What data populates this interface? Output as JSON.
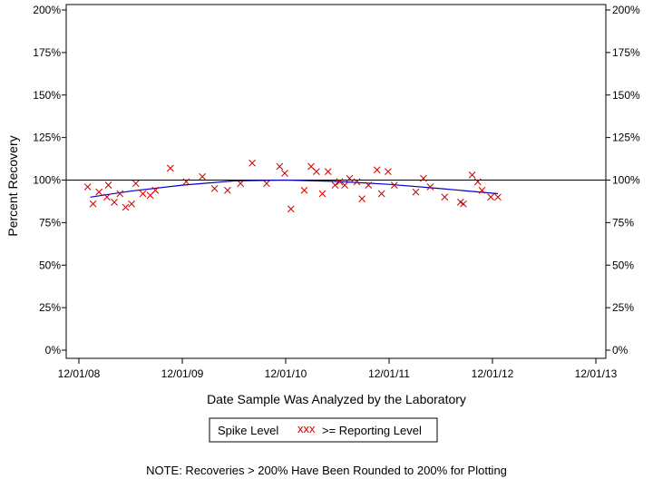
{
  "chart_data": {
    "type": "scatter",
    "xlabel": "Date Sample Was Analyzed by the Laboratory",
    "ylabel": "Percent Recovery",
    "x_ticks": [
      "12/01/08",
      "12/01/09",
      "12/01/10",
      "12/01/11",
      "12/01/12",
      "12/01/13"
    ],
    "y_ticks": [
      "0%",
      "25%",
      "50%",
      "75%",
      "100%",
      "125%",
      "150%",
      "175%",
      "200%"
    ],
    "xlim": [
      "2008-12-01",
      "2013-12-01"
    ],
    "ylim": [
      0,
      200
    ],
    "reference_line": 100,
    "series": [
      {
        "name": "Reporting Level",
        "marker": "x",
        "color": "#cc0000",
        "points": [
          {
            "x": "2009-01-01",
            "y": 96
          },
          {
            "x": "2009-01-20",
            "y": 86
          },
          {
            "x": "2009-02-10",
            "y": 93
          },
          {
            "x": "2009-03-10",
            "y": 90
          },
          {
            "x": "2009-03-15",
            "y": 97
          },
          {
            "x": "2009-04-05",
            "y": 87
          },
          {
            "x": "2009-04-25",
            "y": 92
          },
          {
            "x": "2009-05-15",
            "y": 84
          },
          {
            "x": "2009-06-05",
            "y": 86
          },
          {
            "x": "2009-06-20",
            "y": 98
          },
          {
            "x": "2009-07-15",
            "y": 92
          },
          {
            "x": "2009-08-10",
            "y": 91
          },
          {
            "x": "2009-08-28",
            "y": 94
          },
          {
            "x": "2009-10-20",
            "y": 107
          },
          {
            "x": "2009-12-15",
            "y": 99
          },
          {
            "x": "2010-02-10",
            "y": 102
          },
          {
            "x": "2010-03-25",
            "y": 95
          },
          {
            "x": "2010-05-10",
            "y": 94
          },
          {
            "x": "2010-06-25",
            "y": 98
          },
          {
            "x": "2010-08-05",
            "y": 110
          },
          {
            "x": "2010-09-25",
            "y": 98
          },
          {
            "x": "2010-11-10",
            "y": 108
          },
          {
            "x": "2010-11-28",
            "y": 104
          },
          {
            "x": "2010-12-20",
            "y": 83
          },
          {
            "x": "2011-02-05",
            "y": 94
          },
          {
            "x": "2011-03-01",
            "y": 108
          },
          {
            "x": "2011-03-20",
            "y": 105
          },
          {
            "x": "2011-04-10",
            "y": 92
          },
          {
            "x": "2011-04-30",
            "y": 105
          },
          {
            "x": "2011-05-25",
            "y": 97
          },
          {
            "x": "2011-06-10",
            "y": 99
          },
          {
            "x": "2011-06-28",
            "y": 97
          },
          {
            "x": "2011-07-15",
            "y": 101
          },
          {
            "x": "2011-08-10",
            "y": 99
          },
          {
            "x": "2011-08-28",
            "y": 89
          },
          {
            "x": "2011-09-20",
            "y": 97
          },
          {
            "x": "2011-10-20",
            "y": 106
          },
          {
            "x": "2011-11-05",
            "y": 92
          },
          {
            "x": "2011-11-28",
            "y": 105
          },
          {
            "x": "2011-12-20",
            "y": 97
          },
          {
            "x": "2012-03-05",
            "y": 93
          },
          {
            "x": "2012-04-01",
            "y": 101
          },
          {
            "x": "2012-04-25",
            "y": 96
          },
          {
            "x": "2012-06-15",
            "y": 90
          },
          {
            "x": "2012-08-10",
            "y": 87
          },
          {
            "x": "2012-08-20",
            "y": 86
          },
          {
            "x": "2012-09-20",
            "y": 103
          },
          {
            "x": "2012-10-10",
            "y": 99
          },
          {
            "x": "2012-10-25",
            "y": 94
          },
          {
            "x": "2012-11-25",
            "y": 90
          },
          {
            "x": "2012-12-20",
            "y": 90
          }
        ]
      },
      {
        "name": "Spike Level",
        "marker": "line",
        "color": "#0000cc",
        "points": [
          {
            "x": "2009-01-10",
            "y": 90
          },
          {
            "x": "2009-06-01",
            "y": 93.5
          },
          {
            "x": "2009-12-01",
            "y": 97
          },
          {
            "x": "2010-06-01",
            "y": 99.5
          },
          {
            "x": "2010-12-01",
            "y": 100
          },
          {
            "x": "2011-06-01",
            "y": 99.2
          },
          {
            "x": "2011-12-01",
            "y": 97.5
          },
          {
            "x": "2012-06-01",
            "y": 95
          },
          {
            "x": "2012-12-20",
            "y": 92
          }
        ]
      }
    ],
    "legend": {
      "position": "bottom",
      "spike_label": "Spike Level",
      "reporting_label": ">= Reporting Level",
      "reporting_marker": "xxx"
    },
    "note": "NOTE: Recoveries > 200% Have Been Rounded to 200% for Plotting"
  }
}
